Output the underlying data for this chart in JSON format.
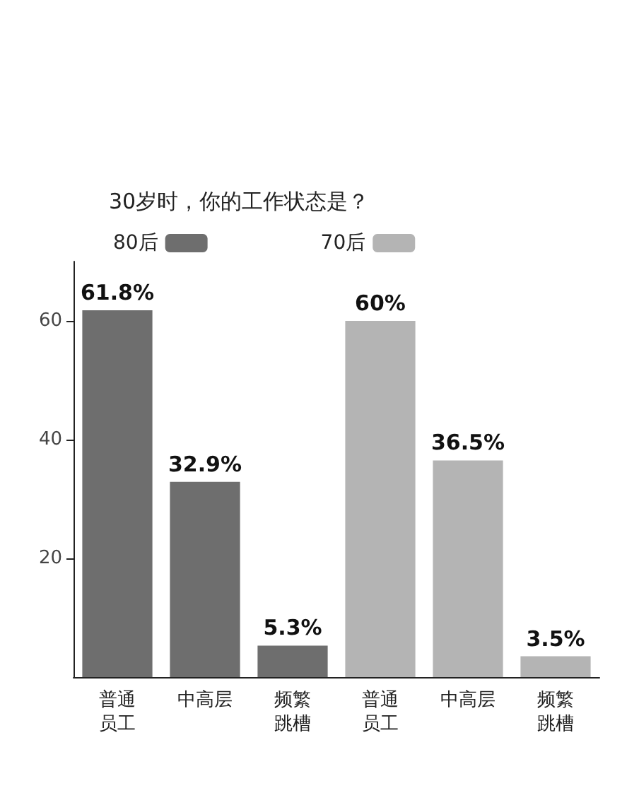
{
  "chart_data": {
    "type": "bar",
    "title": "30岁时，你的工作状态是？",
    "categories": [
      "普通员工",
      "中高层",
      "频繁跳槽",
      "普通员工",
      "中高层",
      "频繁跳槽"
    ],
    "series": [
      {
        "name": "80后",
        "color": "#6e6e6e",
        "values": [
          61.8,
          32.9,
          5.3,
          null,
          null,
          null
        ],
        "value_labels": [
          "61.8%",
          "32.9%",
          "5.3%",
          null,
          null,
          null
        ]
      },
      {
        "name": "70后",
        "color": "#b4b4b4",
        "values": [
          null,
          null,
          null,
          60,
          36.5,
          3.5
        ],
        "value_labels": [
          null,
          null,
          null,
          "60%",
          "36.5%",
          "3.5%"
        ]
      }
    ],
    "stacked": true,
    "ylim": [
      0,
      70
    ],
    "yticks": [
      20,
      40,
      60
    ],
    "grid": false,
    "legend": "top left"
  }
}
